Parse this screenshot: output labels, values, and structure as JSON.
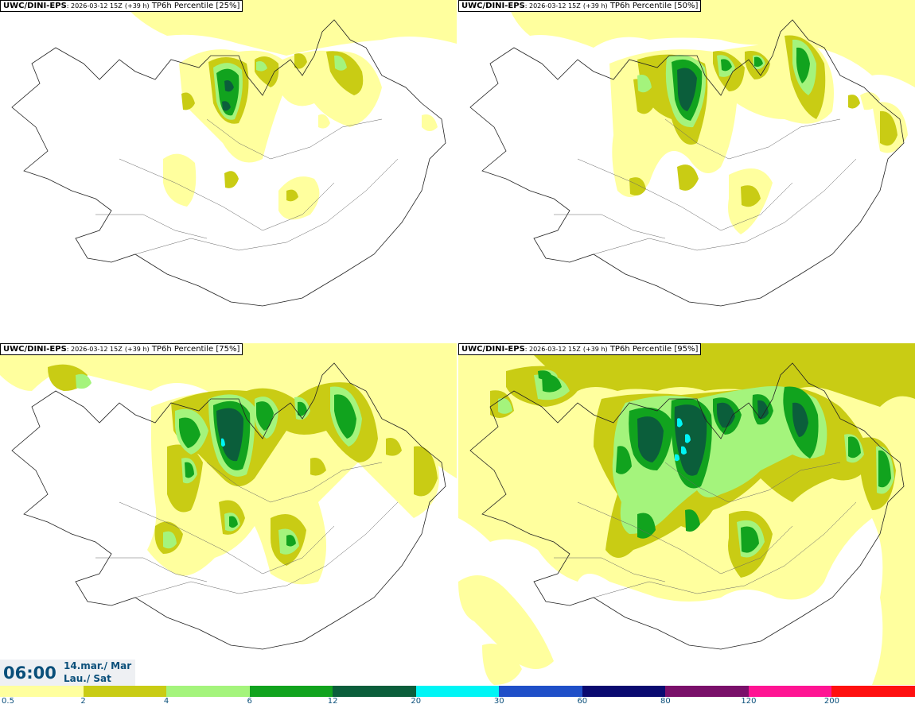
{
  "panels": [
    {
      "model": "UWC/DINI-EPS",
      "run": ": 2026-03-12 15Z",
      "lead": "(+39 h)",
      "field": "TP6h Percentile [25%]"
    },
    {
      "model": "UWC/DINI-EPS",
      "run": ": 2026-03-12 15Z",
      "lead": "(+39 h)",
      "field": "TP6h Percentile [50%]"
    },
    {
      "model": "UWC/DINI-EPS",
      "run": ": 2026-03-12 15Z",
      "lead": "(+39 h)",
      "field": "TP6h Percentile [75%]"
    },
    {
      "model": "UWC/DINI-EPS",
      "run": ": 2026-03-12 15Z",
      "lead": "(+39 h)",
      "field": "TP6h Percentile [95%]"
    }
  ],
  "valid_time": {
    "time": "06:00",
    "date_line1": "14.mar./ Mar",
    "date_line2": "Lau./ Sat"
  },
  "colorbar": {
    "ticks": [
      "0.5",
      "2",
      "4",
      "6",
      "12",
      "20",
      "30",
      "60",
      "80",
      "120",
      "200"
    ],
    "colors": [
      "#ffff9e",
      "#c9cc14",
      "#a4f47c",
      "#11a31e",
      "#0b5e3b",
      "#00f5f5",
      "#1f4fc8",
      "#0a0a70",
      "#7a106a",
      "#ff1493",
      "#ff1010"
    ]
  },
  "map_colors": {
    "light": "#ffff9e",
    "olive": "#c9cc14",
    "lightgreen": "#a4f47c",
    "green": "#11a31e",
    "darkgreen": "#0b5e3b",
    "cyan": "#00f5f5"
  }
}
